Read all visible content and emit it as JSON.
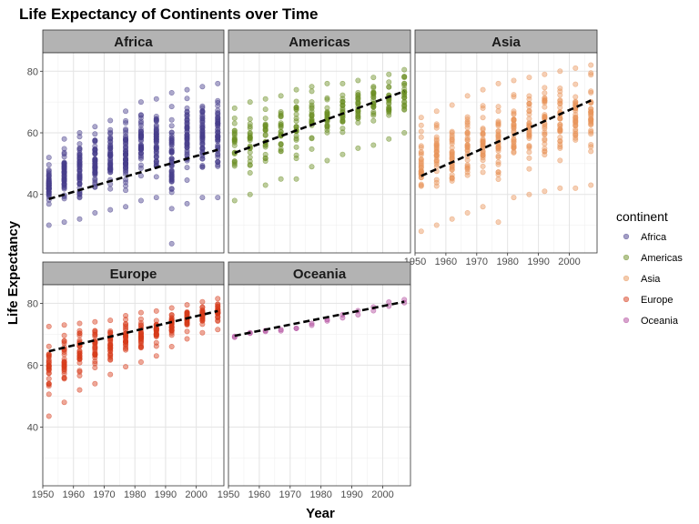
{
  "chart_data": {
    "type": "scatter",
    "title": "Life Expectancy of Continents over Time",
    "xlabel": "Year",
    "ylabel": "Life Expectancy",
    "xlim": [
      1950,
      2009
    ],
    "ylim": [
      21,
      86
    ],
    "x_ticks": [
      1950,
      1960,
      1970,
      1980,
      1990,
      2000
    ],
    "y_ticks": [
      40,
      60,
      80
    ],
    "years": [
      1952,
      1957,
      1962,
      1967,
      1972,
      1977,
      1982,
      1987,
      1992,
      1997,
      2002,
      2007
    ],
    "grid": true,
    "facets": [
      "Africa",
      "Americas",
      "Asia",
      "Europe",
      "Oceania"
    ],
    "legend": {
      "title": "continent",
      "position": "right",
      "entries": [
        {
          "label": "Africa",
          "color": "#483D8B"
        },
        {
          "label": "Americas",
          "color": "#6B8E23"
        },
        {
          "label": "Asia",
          "color": "#E8955A"
        },
        {
          "label": "Europe",
          "color": "#D63B1B"
        },
        {
          "label": "Oceania",
          "color": "#B0479B"
        }
      ]
    },
    "series": [
      {
        "name": "Africa",
        "count_per_year": 52,
        "ranges": [
          [
            30,
            52
          ],
          [
            31,
            58
          ],
          [
            32,
            60
          ],
          [
            34,
            62
          ],
          [
            35,
            64
          ],
          [
            36,
            67
          ],
          [
            38,
            70
          ],
          [
            39,
            71
          ],
          [
            24,
            73
          ],
          [
            37,
            74
          ],
          [
            39,
            75
          ],
          [
            39,
            76
          ]
        ],
        "trend": [
          38.5,
          54.5
        ]
      },
      {
        "name": "Americas",
        "count_per_year": 25,
        "ranges": [
          [
            38,
            68
          ],
          [
            40,
            70
          ],
          [
            43,
            71
          ],
          [
            45,
            72
          ],
          [
            45,
            74
          ],
          [
            49,
            75
          ],
          [
            51,
            76
          ],
          [
            53,
            76
          ],
          [
            55,
            77
          ],
          [
            56,
            78
          ],
          [
            58,
            79
          ],
          [
            60,
            80.5
          ]
        ],
        "trend": [
          53.5,
          73.5
        ]
      },
      {
        "name": "Asia",
        "count_per_year": 33,
        "ranges": [
          [
            28,
            65
          ],
          [
            30,
            67
          ],
          [
            32,
            69
          ],
          [
            34,
            72
          ],
          [
            36,
            74
          ],
          [
            31,
            76
          ],
          [
            39,
            77
          ],
          [
            40,
            78
          ],
          [
            41,
            79
          ],
          [
            42,
            80
          ],
          [
            42,
            81
          ],
          [
            43,
            82
          ]
        ],
        "trend": [
          46,
          70.5
        ]
      },
      {
        "name": "Europe",
        "count_per_year": 30,
        "ranges": [
          [
            43.5,
            72.5
          ],
          [
            48,
            73
          ],
          [
            52,
            73.5
          ],
          [
            54,
            74
          ],
          [
            57,
            74.5
          ],
          [
            59.5,
            76
          ],
          [
            61,
            77
          ],
          [
            63,
            77.5
          ],
          [
            66,
            78.5
          ],
          [
            68.5,
            79.5
          ],
          [
            70.5,
            80.5
          ],
          [
            71.5,
            81.5
          ]
        ],
        "trend": [
          64.5,
          77.5
        ]
      },
      {
        "name": "Oceania",
        "values": [
          [
            69,
            69.3
          ],
          [
            70.3,
            70.5
          ],
          [
            70.9,
            71.2
          ],
          [
            71.1,
            71.5
          ],
          [
            71.9,
            71.9
          ],
          [
            72.9,
            73.5
          ],
          [
            74.3,
            74.8
          ],
          [
            75.3,
            76.3
          ],
          [
            76.3,
            77.6
          ],
          [
            77.6,
            78.8
          ],
          [
            79.1,
            80.4
          ],
          [
            80.2,
            81.2
          ]
        ],
        "trend": [
          69.5,
          80.5
        ]
      }
    ]
  }
}
